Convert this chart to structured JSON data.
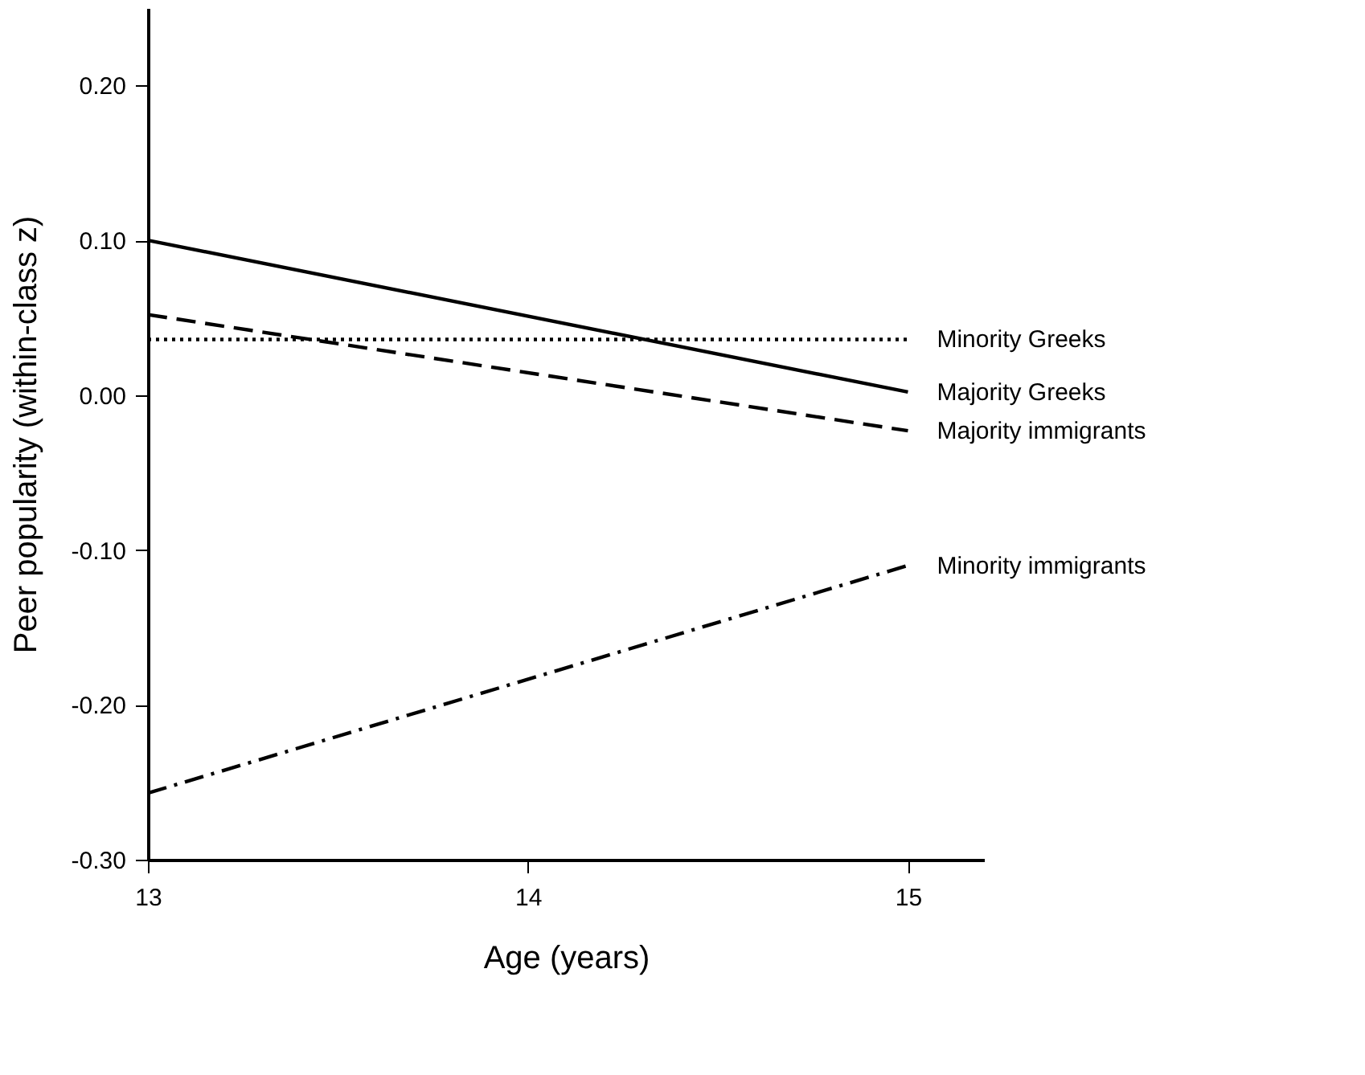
{
  "chart_data": {
    "type": "line",
    "xlabel": "Age (years)",
    "ylabel": "Peer popularity (within-class z)",
    "x": [
      13,
      15
    ],
    "xlim": [
      13,
      15.2
    ],
    "xticks": [
      13,
      14,
      15
    ],
    "ylim": [
      -0.3,
      0.25
    ],
    "yticks": [
      {
        "value": -0.3,
        "label": "-0.30"
      },
      {
        "value": -0.2,
        "label": "-0.20"
      },
      {
        "value": -0.1,
        "label": "-0.10"
      },
      {
        "value": 0,
        "label": "0.00"
      },
      {
        "value": 0.1,
        "label": "0.10"
      },
      {
        "value": 0.2,
        "label": "0.20"
      }
    ],
    "grid": false,
    "legend": false,
    "marker": "none",
    "series": [
      {
        "name": "Minority Greeks",
        "color": "#000000",
        "line_style": "dotted",
        "values": [
          0.036,
          0.036
        ]
      },
      {
        "name": "Majority Greeks",
        "color": "#000000",
        "line_style": "solid",
        "values": [
          0.1,
          0.002
        ]
      },
      {
        "name": "Majority immigrants",
        "color": "#000000",
        "line_style": "dashed",
        "values": [
          0.052,
          -0.023
        ]
      },
      {
        "name": "Minority immigrants",
        "color": "#000000",
        "line_style": "dashdot",
        "values": [
          -0.257,
          -0.11
        ]
      }
    ]
  }
}
